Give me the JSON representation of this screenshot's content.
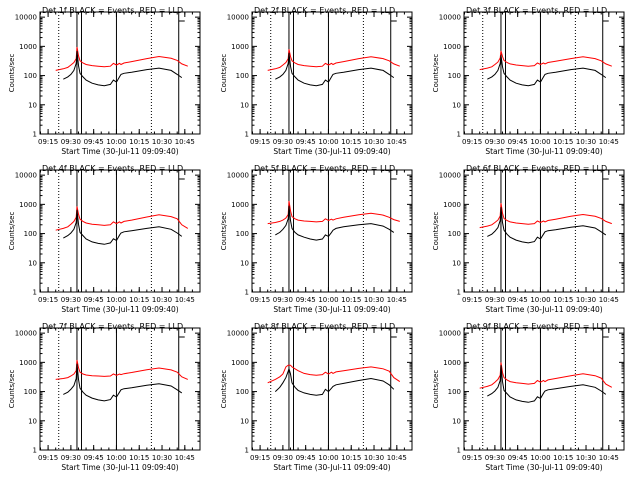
{
  "colors": {
    "events": "#000000",
    "lld": "#ff0000",
    "axis": "#000000",
    "background": "#ffffff"
  },
  "shared": {
    "title_suffix": "BLACK = Events, RED = LLD",
    "xlabel": "Start Time (30-Jul-11 09:09:40)",
    "ylabel": "Counts/sec",
    "x_ticks": [
      "09:15",
      "09:30",
      "09:45",
      "10:00",
      "10:15",
      "10:30",
      "10:45"
    ],
    "x_tick_minutes": [
      15,
      30,
      45,
      60,
      75,
      90,
      105
    ],
    "x_range_minutes": [
      9.67,
      115
    ],
    "y_ticks": [
      "1",
      "10",
      "100",
      "1000",
      "10000"
    ],
    "y_tick_values": [
      1,
      10,
      100,
      1000,
      10000
    ],
    "ylim": [
      1,
      15000
    ],
    "y_scale": "log",
    "dotted_markers_minutes": [
      22,
      83
    ],
    "solid_markers_minutes": [
      34,
      37,
      60,
      101
    ]
  },
  "chart_data": [
    {
      "type": "line",
      "title": "Det 1f BLACK = Events, RED = LLD",
      "x": [
        20,
        25,
        28,
        30,
        32,
        33.5,
        34,
        35,
        36,
        38,
        40,
        44,
        48,
        52,
        56,
        58,
        60,
        62,
        63,
        65,
        70,
        80,
        88,
        96,
        100,
        103,
        107
      ],
      "series": [
        {
          "name": "LLD",
          "color": "#ff0000",
          "values": [
            150,
            170,
            190,
            230,
            280,
            380,
            950,
            480,
            320,
            270,
            240,
            220,
            210,
            200,
            210,
            260,
            230,
            260,
            240,
            270,
            300,
            380,
            450,
            390,
            330,
            250,
            210
          ]
        },
        {
          "name": "Events",
          "color": "#000000",
          "values": [
            null,
            75,
            90,
            110,
            150,
            260,
            700,
            220,
            120,
            90,
            70,
            55,
            48,
            45,
            50,
            70,
            60,
            90,
            110,
            120,
            130,
            160,
            180,
            150,
            110,
            85,
            null
          ]
        }
      ]
    },
    {
      "type": "line",
      "title": "Det 2f BLACK = Events, RED = LLD",
      "x": [
        20,
        25,
        28,
        30,
        32,
        33.5,
        34,
        35,
        36,
        38,
        40,
        44,
        48,
        52,
        56,
        58,
        60,
        62,
        63,
        65,
        70,
        80,
        88,
        96,
        100,
        103,
        107
      ],
      "series": [
        {
          "name": "LLD",
          "color": "#ff0000",
          "values": [
            150,
            170,
            190,
            230,
            280,
            380,
            800,
            450,
            320,
            270,
            240,
            220,
            210,
            200,
            210,
            260,
            230,
            260,
            240,
            270,
            300,
            380,
            440,
            380,
            320,
            250,
            210
          ]
        },
        {
          "name": "Events",
          "color": "#000000",
          "values": [
            null,
            75,
            90,
            110,
            150,
            260,
            600,
            210,
            120,
            90,
            70,
            55,
            48,
            45,
            50,
            70,
            60,
            90,
            110,
            120,
            130,
            160,
            180,
            150,
            110,
            85,
            null
          ]
        }
      ]
    },
    {
      "type": "line",
      "title": "Det 3f BLACK = Events, RED = LLD",
      "x": [
        20,
        25,
        28,
        30,
        32,
        33.5,
        34,
        35,
        36,
        38,
        40,
        44,
        48,
        52,
        56,
        58,
        60,
        62,
        63,
        65,
        70,
        80,
        88,
        96,
        100,
        103,
        107
      ],
      "series": [
        {
          "name": "LLD",
          "color": "#ff0000",
          "values": [
            160,
            180,
            200,
            240,
            290,
            400,
            700,
            450,
            330,
            280,
            250,
            230,
            220,
            210,
            220,
            270,
            240,
            270,
            250,
            280,
            310,
            380,
            440,
            380,
            320,
            250,
            210
          ]
        },
        {
          "name": "Events",
          "color": "#000000",
          "values": [
            null,
            75,
            90,
            110,
            150,
            260,
            500,
            200,
            120,
            90,
            70,
            55,
            48,
            45,
            50,
            70,
            60,
            90,
            110,
            120,
            130,
            160,
            180,
            150,
            110,
            85,
            null
          ]
        }
      ]
    },
    {
      "type": "line",
      "title": "Det 4f BLACK = Events, RED = LLD",
      "x": [
        20,
        25,
        28,
        30,
        32,
        33.5,
        34,
        35,
        36,
        38,
        40,
        44,
        48,
        52,
        56,
        58,
        60,
        62,
        63,
        65,
        70,
        80,
        88,
        96,
        100,
        103,
        107
      ],
      "series": [
        {
          "name": "LLD",
          "color": "#ff0000",
          "values": [
            130,
            150,
            170,
            210,
            260,
            360,
            850,
            460,
            310,
            260,
            230,
            210,
            200,
            190,
            200,
            250,
            220,
            250,
            230,
            260,
            290,
            370,
            440,
            380,
            320,
            200,
            150
          ]
        },
        {
          "name": "Events",
          "color": "#000000",
          "values": [
            null,
            70,
            85,
            105,
            140,
            240,
            650,
            210,
            110,
            85,
            65,
            52,
            46,
            43,
            48,
            66,
            58,
            88,
            105,
            115,
            125,
            150,
            170,
            140,
            105,
            80,
            null
          ]
        }
      ]
    },
    {
      "type": "line",
      "title": "Det 5f BLACK = Events, RED = LLD",
      "x": [
        20,
        25,
        28,
        30,
        32,
        33.5,
        34,
        35,
        36,
        38,
        40,
        44,
        48,
        52,
        56,
        58,
        60,
        62,
        63,
        65,
        70,
        80,
        88,
        96,
        100,
        103,
        107
      ],
      "series": [
        {
          "name": "LLD",
          "color": "#ff0000",
          "values": [
            220,
            240,
            260,
            290,
            340,
            450,
            1300,
            600,
            380,
            320,
            290,
            270,
            260,
            250,
            260,
            320,
            280,
            310,
            290,
            320,
            360,
            440,
            500,
            430,
            360,
            300,
            260
          ]
        },
        {
          "name": "Events",
          "color": "#000000",
          "values": [
            null,
            90,
            110,
            140,
            190,
            320,
            900,
            280,
            150,
            110,
            90,
            75,
            65,
            60,
            65,
            90,
            80,
            110,
            130,
            150,
            170,
            200,
            220,
            180,
            140,
            110,
            null
          ]
        }
      ]
    },
    {
      "type": "line",
      "title": "Det 6f BLACK = Events, RED = LLD",
      "x": [
        20,
        25,
        28,
        30,
        32,
        33.5,
        34,
        35,
        36,
        38,
        40,
        44,
        48,
        52,
        56,
        58,
        60,
        62,
        63,
        65,
        70,
        80,
        88,
        96,
        100,
        103,
        107
      ],
      "series": [
        {
          "name": "LLD",
          "color": "#ff0000",
          "values": [
            160,
            180,
            200,
            240,
            290,
            400,
            1100,
            500,
            330,
            280,
            250,
            230,
            220,
            210,
            220,
            270,
            240,
            270,
            250,
            280,
            310,
            390,
            450,
            390,
            330,
            260,
            220
          ]
        },
        {
          "name": "Events",
          "color": "#000000",
          "values": [
            null,
            80,
            95,
            120,
            160,
            280,
            800,
            240,
            130,
            95,
            75,
            60,
            52,
            48,
            53,
            75,
            65,
            95,
            115,
            125,
            135,
            165,
            185,
            155,
            115,
            90,
            null
          ]
        }
      ]
    },
    {
      "type": "line",
      "title": "Det 7f BLACK = Events, RED = LLD",
      "x": [
        20,
        25,
        28,
        30,
        32,
        33.5,
        34,
        35,
        36,
        38,
        40,
        44,
        48,
        52,
        56,
        58,
        60,
        62,
        63,
        65,
        70,
        80,
        88,
        96,
        100,
        103,
        107
      ],
      "series": [
        {
          "name": "LLD",
          "color": "#ff0000",
          "values": [
            260,
            280,
            300,
            340,
            400,
            520,
            1200,
            650,
            460,
            400,
            370,
            350,
            340,
            330,
            340,
            400,
            360,
            400,
            380,
            410,
            450,
            560,
            640,
            550,
            460,
            320,
            260
          ]
        },
        {
          "name": "Events",
          "color": "#000000",
          "values": [
            null,
            80,
            95,
            120,
            160,
            280,
            900,
            260,
            130,
            95,
            75,
            60,
            52,
            48,
            53,
            75,
            65,
            95,
            115,
            125,
            135,
            165,
            185,
            155,
            115,
            90,
            null
          ]
        }
      ]
    },
    {
      "type": "line",
      "title": "Det 8f BLACK = Events, RED = LLD",
      "x": [
        20,
        25,
        28,
        30,
        32,
        33.5,
        34,
        35,
        36,
        38,
        40,
        44,
        48,
        52,
        56,
        58,
        60,
        62,
        63,
        65,
        70,
        80,
        88,
        96,
        100,
        103,
        107
      ],
      "series": [
        {
          "name": "LLD",
          "color": "#ff0000",
          "values": [
            200,
            260,
            320,
            400,
            700,
            800,
            800,
            800,
            700,
            600,
            520,
            420,
            380,
            360,
            380,
            460,
            400,
            460,
            420,
            470,
            520,
            620,
            700,
            600,
            500,
            300,
            220
          ]
        },
        {
          "name": "Events",
          "color": "#000000",
          "values": [
            null,
            100,
            140,
            200,
            300,
            500,
            600,
            400,
            200,
            140,
            110,
            90,
            80,
            75,
            80,
            120,
            100,
            130,
            150,
            170,
            190,
            240,
            280,
            230,
            170,
            120,
            null
          ]
        }
      ]
    },
    {
      "type": "line",
      "title": "Det 9f BLACK = Events, RED = LLD",
      "x": [
        20,
        25,
        28,
        30,
        32,
        33.5,
        34,
        35,
        36,
        38,
        40,
        44,
        48,
        52,
        56,
        58,
        60,
        62,
        63,
        65,
        70,
        80,
        88,
        96,
        100,
        103,
        107
      ],
      "series": [
        {
          "name": "LLD",
          "color": "#ff0000",
          "values": [
            130,
            150,
            170,
            210,
            260,
            360,
            1000,
            450,
            300,
            250,
            220,
            200,
            190,
            180,
            190,
            240,
            210,
            240,
            220,
            250,
            280,
            350,
            410,
            350,
            290,
            180,
            140
          ]
        },
        {
          "name": "Events",
          "color": "#000000",
          "values": [
            null,
            70,
            85,
            105,
            140,
            240,
            800,
            220,
            110,
            85,
            65,
            52,
            46,
            43,
            48,
            66,
            58,
            88,
            105,
            115,
            125,
            150,
            170,
            140,
            105,
            80,
            null
          ]
        }
      ]
    }
  ]
}
